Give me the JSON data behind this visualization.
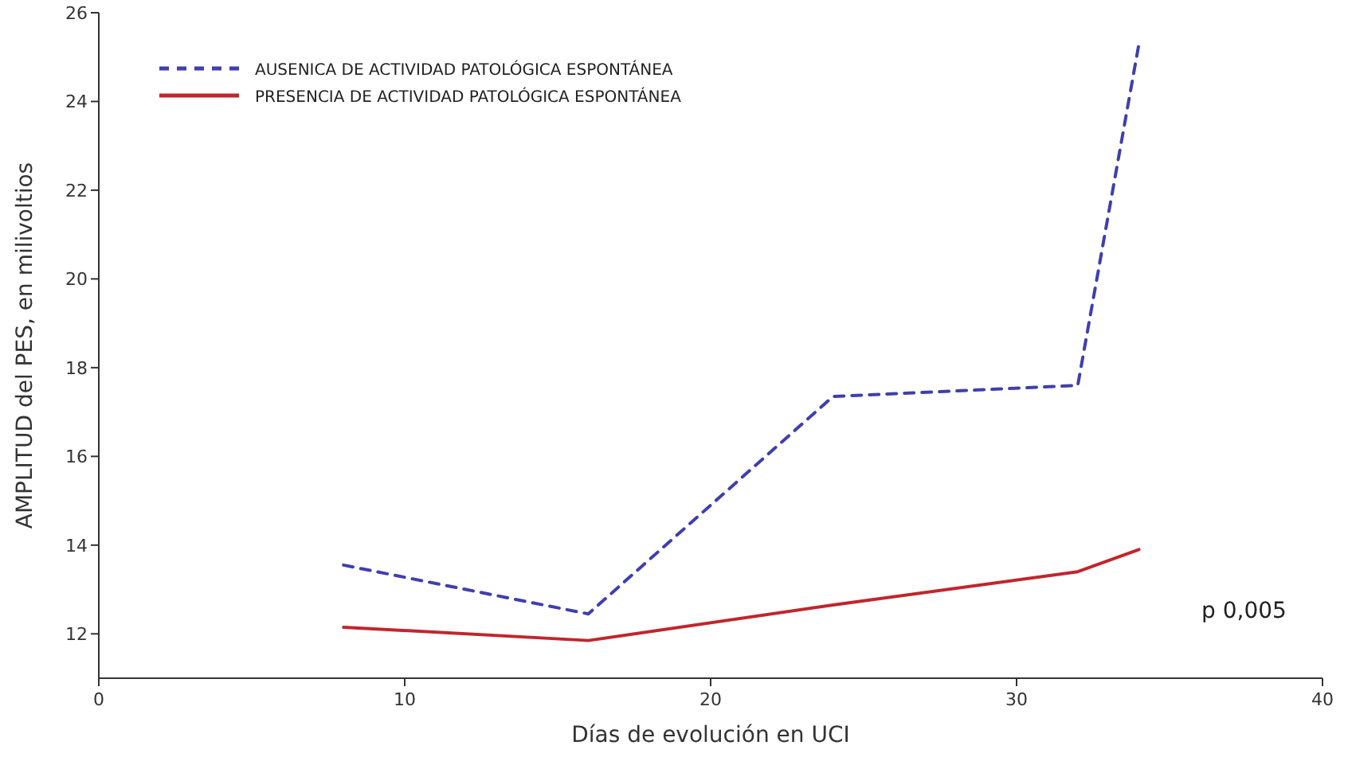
{
  "chart_data": {
    "type": "line",
    "xlabel": "Días de evolución en UCI",
    "ylabel": "AMPLITUD del PES, en milivoltios",
    "xlim": [
      0,
      40
    ],
    "xticks": [
      0,
      10,
      20,
      30,
      40
    ],
    "ylim": [
      11,
      26
    ],
    "yticks": [
      12,
      14,
      16,
      18,
      20,
      22,
      24,
      26
    ],
    "grid": false,
    "legend": "top left",
    "marker": "none",
    "annotations": [
      "p 0,005"
    ],
    "series": [
      {
        "name": "AUSENICA DE ACTIVIDAD PATOLÓGICA ESPONTÁNEA",
        "color": "#3f3faf",
        "line_style": "dashed",
        "x": [
          8,
          16,
          24,
          32,
          34
        ],
        "values": [
          13.55,
          12.45,
          17.35,
          17.6,
          25.3
        ]
      },
      {
        "name": "PRESENCIA DE ACTIVIDAD PATOLÓGICA ESPONTÁNEA",
        "color": "#c0262d",
        "line_style": "solid",
        "x": [
          8,
          16,
          24,
          32,
          34
        ],
        "values": [
          12.15,
          11.85,
          12.65,
          13.4,
          13.9
        ]
      }
    ]
  }
}
